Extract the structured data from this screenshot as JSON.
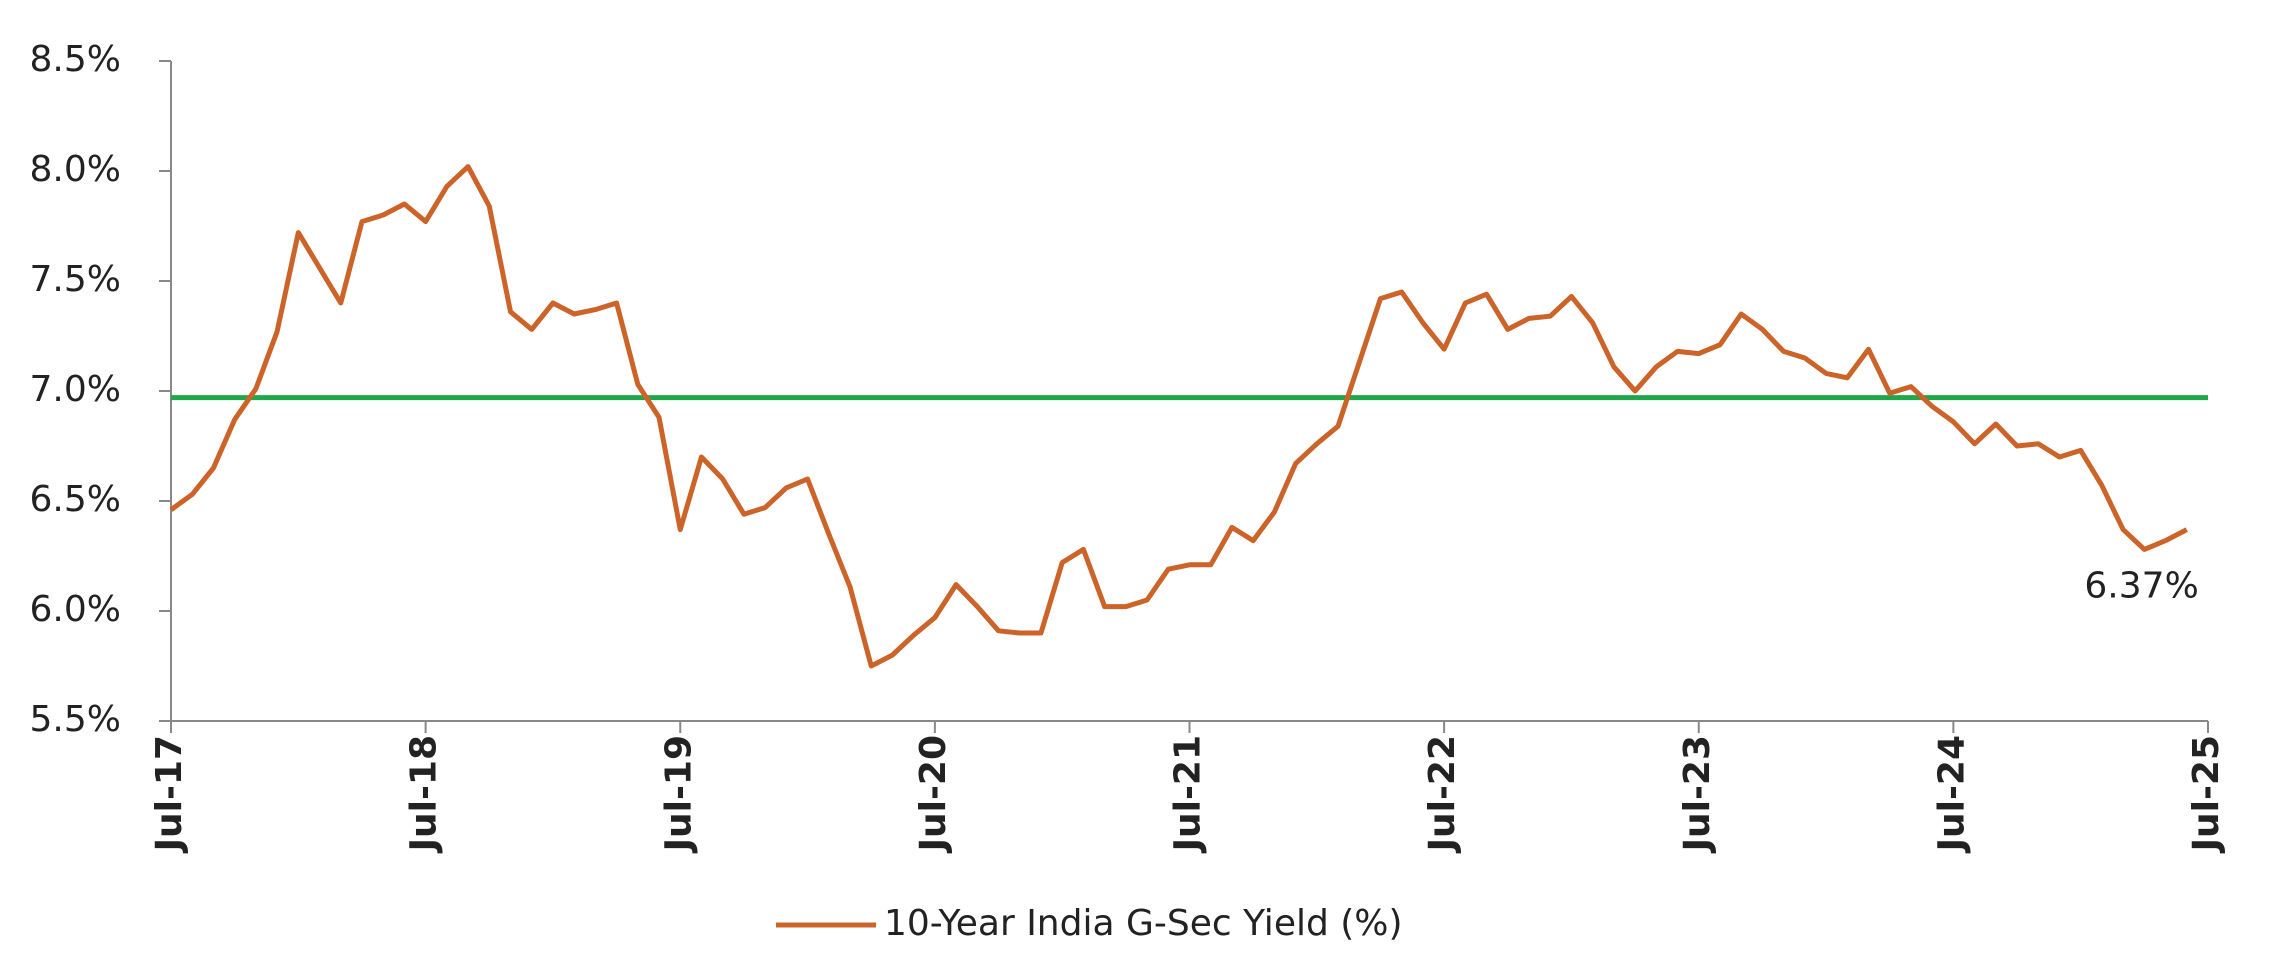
{
  "chart_data": {
    "type": "line",
    "x": [
      "Jul-17",
      "Aug-17",
      "Sep-17",
      "Oct-17",
      "Nov-17",
      "Dec-17",
      "Jan-18",
      "Feb-18",
      "Mar-18",
      "Apr-18",
      "May-18",
      "Jun-18",
      "Jul-18",
      "Aug-18",
      "Sep-18",
      "Oct-18",
      "Nov-18",
      "Dec-18",
      "Jan-19",
      "Feb-19",
      "Mar-19",
      "Apr-19",
      "May-19",
      "Jun-19",
      "Jul-19",
      "Aug-19",
      "Sep-19",
      "Oct-19",
      "Nov-19",
      "Dec-19",
      "Jan-20",
      "Feb-20",
      "Mar-20",
      "Apr-20",
      "May-20",
      "Jun-20",
      "Jul-20",
      "Aug-20",
      "Sep-20",
      "Oct-20",
      "Nov-20",
      "Dec-20",
      "Jan-21",
      "Feb-21",
      "Mar-21",
      "Apr-21",
      "May-21",
      "Jun-21",
      "Jul-21",
      "Aug-21",
      "Sep-21",
      "Oct-21",
      "Nov-21",
      "Dec-21",
      "Jan-22",
      "Feb-22",
      "Mar-22",
      "Apr-22",
      "May-22",
      "Jun-22",
      "Jul-22",
      "Aug-22",
      "Sep-22",
      "Oct-22",
      "Nov-22",
      "Dec-22",
      "Jan-23",
      "Feb-23",
      "Mar-23",
      "Apr-23",
      "May-23",
      "Jun-23",
      "Jul-23",
      "Aug-23",
      "Sep-23",
      "Oct-23",
      "Nov-23",
      "Dec-23",
      "Jan-24",
      "Feb-24",
      "Mar-24",
      "Apr-24",
      "May-24",
      "Jun-24",
      "Jul-24",
      "Aug-24",
      "Sep-24",
      "Oct-24",
      "Nov-24",
      "Dec-24",
      "Jan-25",
      "Feb-25",
      "Mar-25",
      "Apr-25",
      "May-25",
      "Jun-25"
    ],
    "series": [
      {
        "name": "10-Year India G-Sec Yield (%)",
        "color": "#cc6329",
        "values": [
          6.46,
          6.53,
          6.65,
          6.87,
          7.01,
          7.27,
          7.72,
          7.56,
          7.4,
          7.77,
          7.8,
          7.85,
          7.77,
          7.93,
          8.02,
          7.84,
          7.36,
          7.28,
          7.4,
          7.35,
          7.37,
          7.4,
          7.03,
          6.88,
          6.37,
          6.7,
          6.6,
          6.44,
          6.47,
          6.56,
          6.6,
          6.35,
          6.11,
          5.75,
          5.8,
          5.89,
          5.97,
          6.12,
          6.02,
          5.91,
          5.9,
          5.9,
          6.22,
          6.28,
          6.02,
          6.02,
          6.05,
          6.19,
          6.21,
          6.21,
          6.38,
          6.32,
          6.45,
          6.67,
          6.76,
          6.84,
          7.13,
          7.42,
          7.45,
          7.31,
          7.19,
          7.4,
          7.44,
          7.28,
          7.33,
          7.34,
          7.43,
          7.31,
          7.11,
          7.0,
          7.11,
          7.18,
          7.17,
          7.21,
          7.35,
          7.28,
          7.18,
          7.15,
          7.08,
          7.06,
          7.19,
          6.99,
          7.02,
          6.93,
          6.86,
          6.76,
          6.85,
          6.75,
          6.76,
          6.7,
          6.73,
          6.57,
          6.37,
          6.28,
          6.32,
          6.37
        ],
        "value_labels": [
          null,
          null,
          null,
          null,
          null,
          null,
          null,
          null,
          null,
          null,
          null,
          null,
          null,
          null,
          null,
          null,
          null,
          null,
          null,
          null,
          null,
          null,
          null,
          null,
          null,
          null,
          null,
          null,
          null,
          null,
          null,
          null,
          null,
          null,
          null,
          null,
          null,
          null,
          null,
          null,
          null,
          null,
          null,
          null,
          null,
          null,
          null,
          null,
          null,
          null,
          null,
          null,
          null,
          null,
          null,
          null,
          null,
          null,
          null,
          null,
          null,
          null,
          null,
          null,
          null,
          null,
          null,
          null,
          null,
          null,
          null,
          null,
          null,
          null,
          null,
          null,
          null,
          null,
          null,
          null,
          null,
          null,
          null,
          null,
          null,
          null,
          null,
          null,
          null,
          null,
          null,
          null,
          null,
          null,
          null,
          "6.37%"
        ]
      }
    ],
    "reference_line": {
      "value": 6.97,
      "color": "#1fa84a"
    },
    "xlim": [
      "Jul-17",
      "Jul-25"
    ],
    "xticks": [
      "Jul-17",
      "Jul-18",
      "Jul-19",
      "Jul-20",
      "Jul-21",
      "Jul-22",
      "Jul-23",
      "Jul-24",
      "Jul-25"
    ],
    "ylim": [
      5.5,
      8.5
    ],
    "yticks": [
      {
        "value": 5.5,
        "label": "5.5%"
      },
      {
        "value": 6.0,
        "label": "6.0%"
      },
      {
        "value": 6.5,
        "label": "6.5%"
      },
      {
        "value": 7.0,
        "label": "7.0%"
      },
      {
        "value": 7.5,
        "label": "7.5%"
      },
      {
        "value": 8.0,
        "label": "8.0%"
      },
      {
        "value": 8.5,
        "label": "8.5%"
      }
    ],
    "legend": "bottom"
  }
}
